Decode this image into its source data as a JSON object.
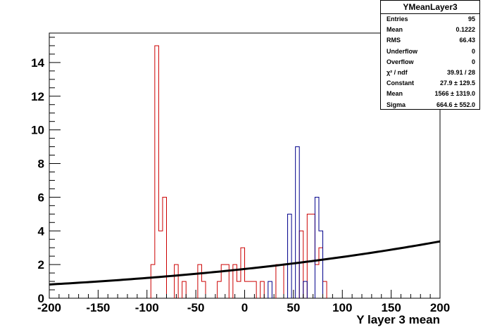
{
  "chart_data": {
    "type": "histogram",
    "title": "",
    "xlabel": "Y layer 3 mean",
    "ylabel": "",
    "xlim": [
      -200,
      200
    ],
    "ylim": [
      0,
      15.75
    ],
    "bin_width": 4,
    "x_ticks": [
      -200,
      -150,
      -100,
      -50,
      0,
      50,
      100,
      150,
      200
    ],
    "y_ticks": [
      0,
      2,
      4,
      6,
      8,
      10,
      12,
      14
    ],
    "series": [
      {
        "color": "#cc0000",
        "bins": [
          {
            "x": -96,
            "y": 2
          },
          {
            "x": -92,
            "y": 15
          },
          {
            "x": -88,
            "y": 4
          },
          {
            "x": -84,
            "y": 6
          },
          {
            "x": -72,
            "y": 2
          },
          {
            "x": -64,
            "y": 1
          },
          {
            "x": -48,
            "y": 2
          },
          {
            "x": -44,
            "y": 1
          },
          {
            "x": -28,
            "y": 1
          },
          {
            "x": -24,
            "y": 2
          },
          {
            "x": -20,
            "y": 2
          },
          {
            "x": -12,
            "y": 2
          },
          {
            "x": -8,
            "y": 1
          },
          {
            "x": -4,
            "y": 3
          },
          {
            "x": 0,
            "y": 1
          },
          {
            "x": 4,
            "y": 1
          },
          {
            "x": 8,
            "y": 1
          },
          {
            "x": 16,
            "y": 1
          },
          {
            "x": 32,
            "y": 2
          },
          {
            "x": 36,
            "y": 2
          },
          {
            "x": 56,
            "y": 4
          },
          {
            "x": 64,
            "y": 5
          },
          {
            "x": 68,
            "y": 5
          },
          {
            "x": 72,
            "y": 2
          },
          {
            "x": 76,
            "y": 3
          },
          {
            "x": 80,
            "y": 1
          }
        ]
      },
      {
        "color": "#00008b",
        "bins": [
          {
            "x": 24,
            "y": 1
          },
          {
            "x": 44,
            "y": 5
          },
          {
            "x": 52,
            "y": 9
          },
          {
            "x": 60,
            "y": 1
          },
          {
            "x": 72,
            "y": 6
          },
          {
            "x": 76,
            "y": 4
          }
        ]
      },
      {
        "type": "fit",
        "color": "#000000",
        "model": "gaus",
        "constant": 27.9,
        "mean": 1566,
        "sigma": 664.6
      }
    ]
  },
  "stats": {
    "title": "YMeanLayer3",
    "rows": [
      {
        "label": "Entries",
        "value": "95"
      },
      {
        "label": "Mean",
        "value": "0.1222"
      },
      {
        "label": "RMS",
        "value": "66.43"
      },
      {
        "label": "Underflow",
        "value": "0"
      },
      {
        "label": "Overflow",
        "value": "0"
      },
      {
        "label": "χ² / ndf",
        "value": "39.91 / 28"
      },
      {
        "label": "Constant",
        "value": "27.9 ± 129.5"
      },
      {
        "label": "Mean",
        "value": "1566 ± 1319.0"
      },
      {
        "label": "Sigma",
        "value": "664.6 ± 552.0"
      }
    ]
  }
}
